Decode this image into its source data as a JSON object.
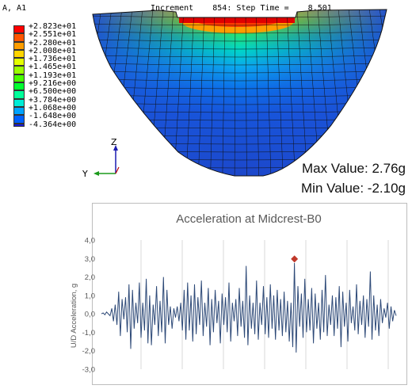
{
  "contour": {
    "variable": "A, A1",
    "increment_text": "Increment    854: Step Time =    8.501",
    "legend_values": [
      "+2.823e+01",
      "+2.551e+01",
      "+2.280e+01",
      "+2.008e+01",
      "+1.736e+01",
      "+1.465e+01",
      "+1.193e+01",
      "+9.216e+00",
      "+6.500e+00",
      "+3.784e+00",
      "+1.068e+00",
      "-1.648e+00",
      "-4.364e+00"
    ],
    "legend_colors": [
      "#ff0000",
      "#ff5500",
      "#ff9d00",
      "#ffd500",
      "#e4ff00",
      "#9aff00",
      "#48ff00",
      "#00ff31",
      "#00ff9a",
      "#00ecd6",
      "#00a3ff",
      "#0060ff",
      "#1a1ad8"
    ],
    "triad_labels": {
      "z": "Z",
      "y": "Y"
    },
    "max_value": "Max Value: 2.76g",
    "min_value": "Min Value: -2.10g"
  },
  "chart_data": {
    "type": "line",
    "title": "Acceleration at Midcrest-B0",
    "ylabel": "U/D Acceleration, g",
    "xlabel": "",
    "ylim": [
      -3.0,
      4.0
    ],
    "yticks": [
      "4,0",
      "3,0",
      "2,0",
      "1,0",
      "0,0",
      "-1,0",
      "-2,0",
      "-3,0"
    ],
    "grid": "vertical only",
    "peak_marker": {
      "x": 112,
      "y": 2.76,
      "color": "#c0392b"
    },
    "series": [
      {
        "color": "#2e4a78",
        "values": [
          0.0,
          0.05,
          -0.05,
          0.1,
          0.0,
          -0.1,
          0.3,
          -0.4,
          0.5,
          -0.6,
          1.2,
          -1.2,
          0.8,
          -0.3,
          0.9,
          -1.0,
          1.6,
          -1.9,
          1.3,
          -0.8,
          0.6,
          -0.5,
          1.7,
          -1.3,
          0.6,
          -0.9,
          1.9,
          -1.6,
          1.0,
          -1.7,
          0.5,
          -0.6,
          1.5,
          -1.2,
          0.7,
          -1.0,
          2.0,
          -1.6,
          1.3,
          -0.6,
          0.4,
          -0.8,
          0.3,
          -0.2,
          0.4,
          -0.4,
          0.6,
          -0.9,
          1.3,
          -1.4,
          1.7,
          -0.9,
          1.0,
          -1.5,
          1.6,
          -1.1,
          0.9,
          -0.6,
          1.8,
          -1.2,
          0.6,
          -0.7,
          1.4,
          -1.7,
          0.8,
          -1.0,
          1.3,
          -0.5,
          0.7,
          -1.6,
          1.1,
          -0.6,
          0.9,
          -1.0,
          1.7,
          -1.5,
          0.6,
          -0.4,
          0.8,
          -1.2,
          1.4,
          -0.7,
          0.7,
          -1.3,
          2.6,
          -1.7,
          1.0,
          -0.8,
          0.6,
          -1.1,
          1.8,
          -1.4,
          0.6,
          -0.6,
          1.5,
          -1.1,
          0.9,
          -1.3,
          1.6,
          -0.8,
          1.0,
          -1.4,
          1.3,
          -0.9,
          0.8,
          -1.2,
          1.2,
          -1.0,
          0.7,
          -1.5,
          0.6,
          -1.8,
          2.76,
          -2.1,
          1.5,
          -0.7,
          1.1,
          -1.3,
          1.9,
          -1.0,
          0.8,
          -0.9,
          1.4,
          -1.6,
          1.1,
          -0.8,
          0.6,
          -1.4,
          1.3,
          -1.0,
          2.1,
          -1.2,
          0.5,
          -0.6,
          1.0,
          -1.2,
          0.9,
          -0.8,
          1.5,
          -1.8,
          1.2,
          -0.7,
          0.6,
          -1.5,
          1.3,
          -0.5,
          0.4,
          -0.9,
          1.6,
          -1.1,
          0.7,
          -0.6,
          1.0,
          -1.3,
          0.8,
          -0.7,
          2.3,
          -1.4,
          1.0,
          -0.9,
          0.5,
          -1.2,
          0.8,
          -0.5,
          0.3,
          -0.2,
          0.6,
          -0.8,
          0.4,
          -0.4,
          0.2,
          -0.1
        ]
      }
    ]
  }
}
